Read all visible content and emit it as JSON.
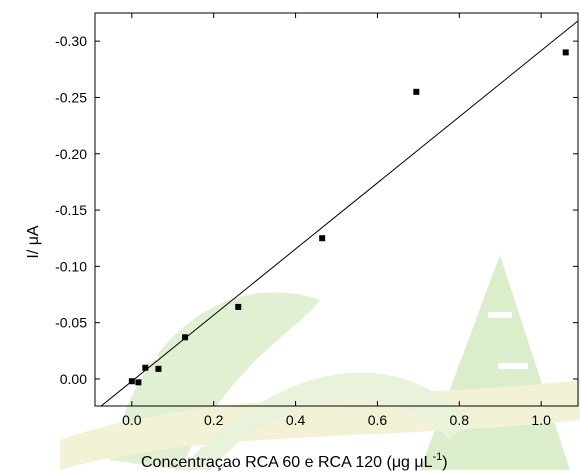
{
  "chart_data": {
    "type": "scatter",
    "title": "",
    "xlabel": {
      "prefix": "Concentraçao RCA 60 e RCA 120 (",
      "mu1": "μ",
      "g": "g ",
      "mu2": "μ",
      "L": "L",
      "sup": "-1",
      "suffix": ")"
    },
    "ylabel": {
      "prefix": "I/ ",
      "mu": "μ",
      "unit": "A"
    },
    "xlim": [
      -0.09,
      1.09
    ],
    "ylim": [
      0.024,
      -0.325
    ],
    "x_ticks": [
      0.0,
      0.2,
      0.4,
      0.6,
      0.8,
      1.0
    ],
    "x_tick_labels": [
      "0.0",
      "0.2",
      "0.4",
      "0.6",
      "0.8",
      "1.0"
    ],
    "y_ticks": [
      0.0,
      -0.05,
      -0.1,
      -0.15,
      -0.2,
      -0.25,
      -0.3
    ],
    "y_tick_labels": [
      "0.00",
      "-0.05",
      "-0.10",
      "-0.15",
      "-0.20",
      "-0.25",
      "-0.30"
    ],
    "points": [
      {
        "x": 0.0,
        "y": 0.002
      },
      {
        "x": 0.016,
        "y": 0.003
      },
      {
        "x": 0.033,
        "y": -0.01
      },
      {
        "x": 0.065,
        "y": -0.009
      },
      {
        "x": 0.13,
        "y": -0.037
      },
      {
        "x": 0.26,
        "y": -0.064
      },
      {
        "x": 0.465,
        "y": -0.125
      },
      {
        "x": 0.695,
        "y": -0.255
      },
      {
        "x": 1.06,
        "y": -0.29
      }
    ],
    "fit_line": {
      "x": [
        -0.075,
        1.09
      ],
      "y": [
        0.024,
        -0.318
      ]
    },
    "grid": false,
    "marker_color": "#000000",
    "line_color": "#000000"
  },
  "watermark": {
    "colors": [
      "#d9ecc8",
      "#f2f1d2",
      "#e8f4dc"
    ]
  }
}
